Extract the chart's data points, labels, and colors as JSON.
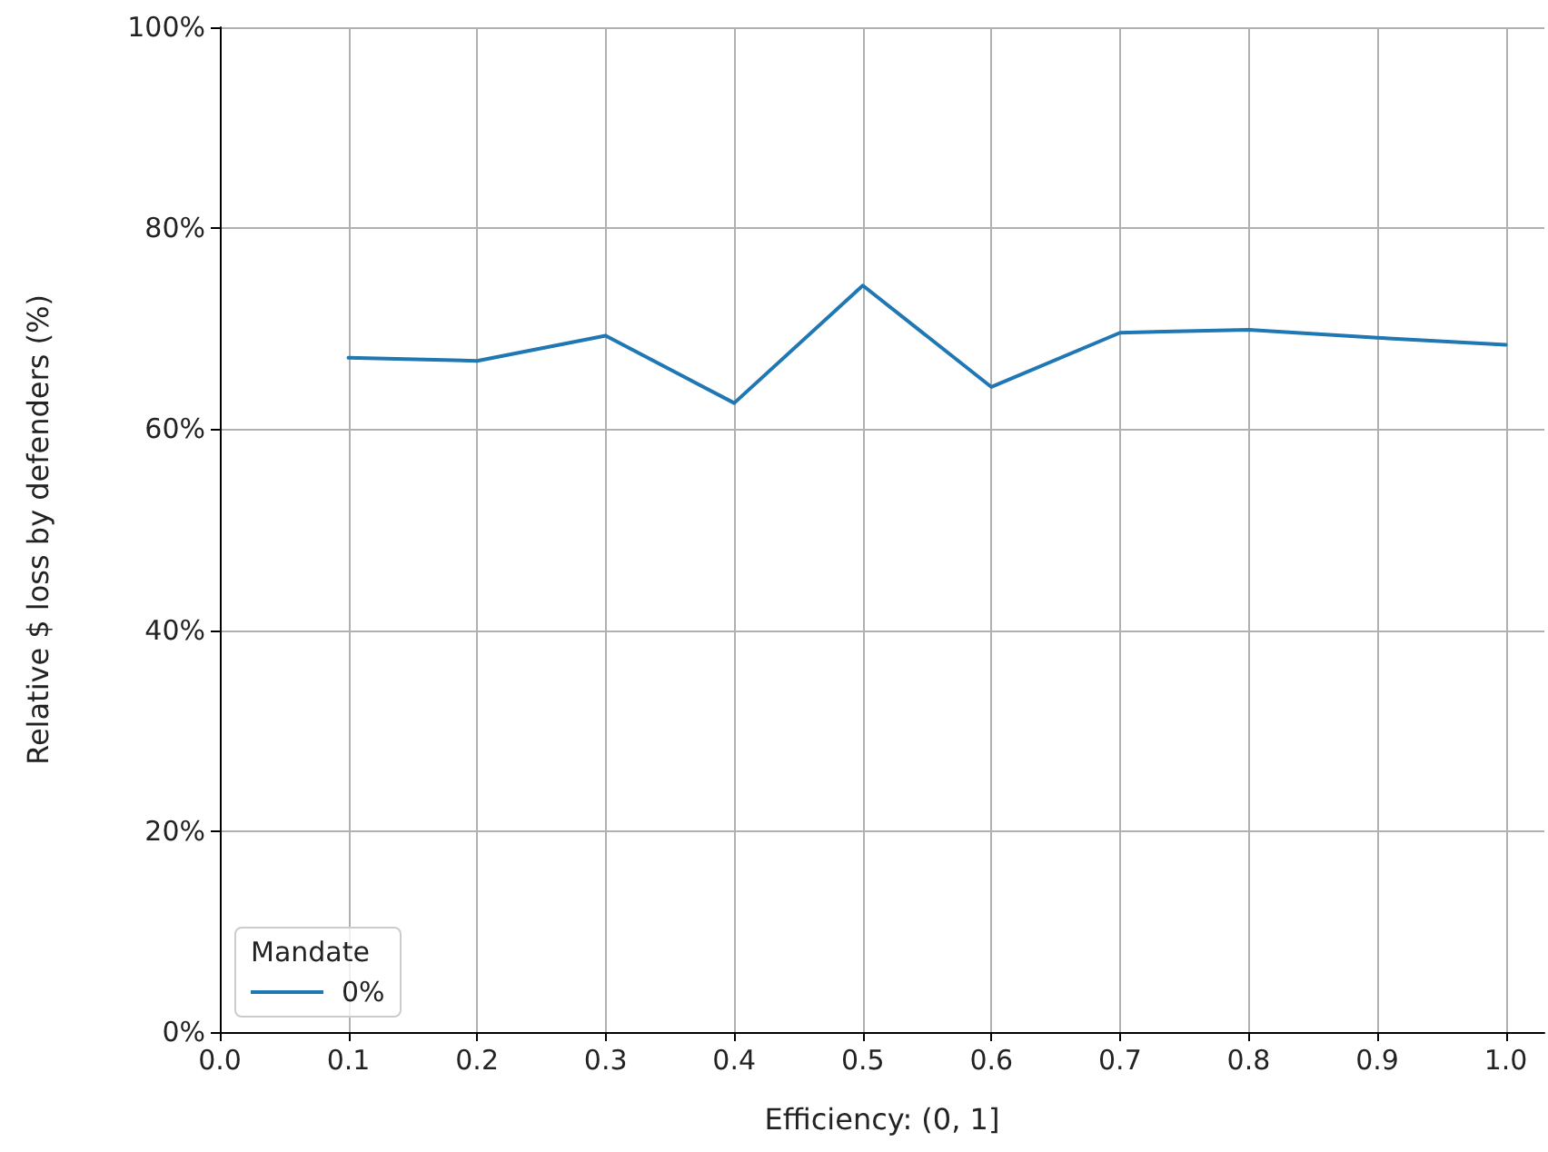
{
  "chart_data": {
    "type": "line",
    "xlabel": "Efficiency: (0, 1]",
    "ylabel": "Relative $ loss by defenders (%)",
    "legend_title": "Mandate",
    "x": [
      0.1,
      0.2,
      0.3,
      0.4,
      0.5,
      0.6,
      0.7,
      0.8,
      0.9,
      1.0
    ],
    "series": [
      {
        "name": "0%",
        "color": "#1f77b4",
        "values": [
          67.1,
          66.8,
          69.3,
          62.6,
          74.3,
          64.2,
          69.6,
          69.9,
          69.1,
          68.4
        ]
      }
    ],
    "xlim": [
      0,
      1.03
    ],
    "xticks": [
      {
        "value": 0,
        "label": "0.0"
      },
      0.1,
      0.2,
      0.3,
      0.4,
      0.5,
      0.6,
      0.7,
      0.8,
      0.9,
      {
        "value": 1,
        "label": "1.0"
      }
    ],
    "ylim": [
      0,
      100
    ],
    "yticks": [
      {
        "value": 0,
        "label": "0%"
      },
      {
        "value": 20,
        "label": "20%"
      },
      {
        "value": 40,
        "label": "40%"
      },
      {
        "value": 60,
        "label": "60%"
      },
      {
        "value": 80,
        "label": "80%"
      },
      {
        "value": 100,
        "label": "100%"
      }
    ],
    "grid": true,
    "legend": "bottom left",
    "marker": "none",
    "line_style": "solid"
  }
}
